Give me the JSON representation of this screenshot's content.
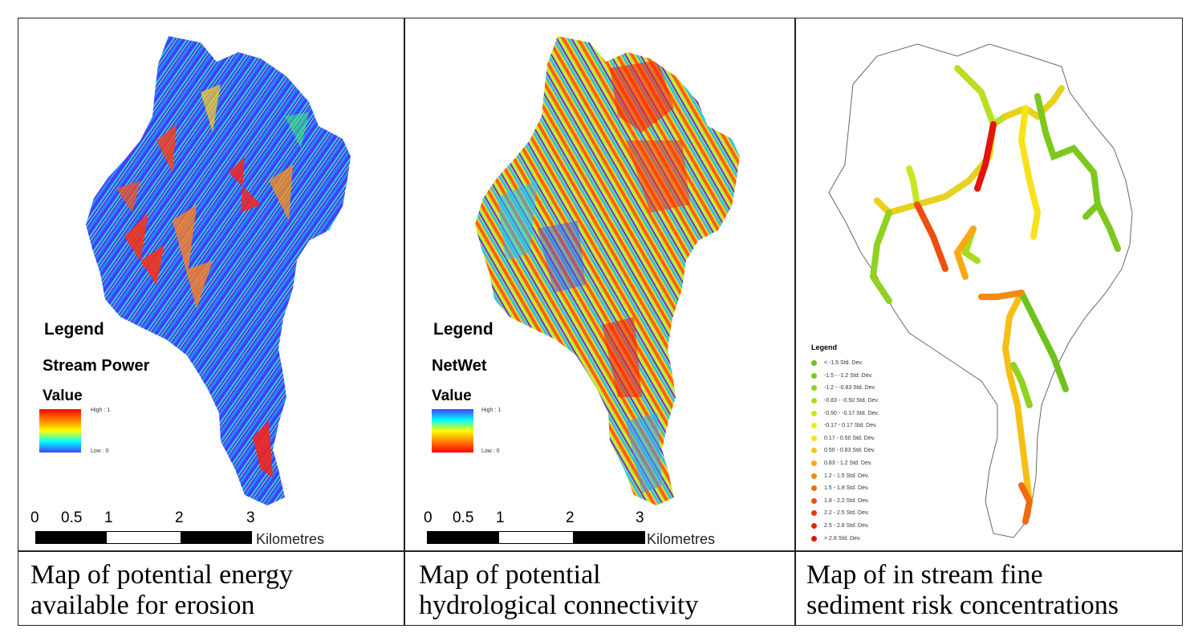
{
  "panels": [
    {
      "caption_line1": "Map of potential energy",
      "caption_line2": "available for erosion",
      "legend_title": "Legend",
      "layer_name": "Stream Power",
      "value_label": "Value",
      "high_label": "High : 1",
      "low_label": "Low : 0",
      "ramp": [
        "#ff0000",
        "#ff7f00",
        "#ffff00",
        "#00ffff",
        "#4040ff"
      ]
    },
    {
      "caption_line1": "Map of potential",
      "caption_line2": "hydrological connectivity",
      "legend_title": "Legend",
      "layer_name": "NetWet",
      "value_label": "Value",
      "high_label": "High : 1",
      "low_label": "Low : 0",
      "ramp": [
        "#4040ff",
        "#00ffff",
        "#ffff00",
        "#ff7f00",
        "#ff0000"
      ]
    },
    {
      "caption_line1": "Map of in stream fine",
      "caption_line2": "sediment risk concentrations",
      "legend_title": "Legend",
      "classes": [
        {
          "label": "< -1.5 Std. Dev.",
          "color": "#6fc21c"
        },
        {
          "label": "-1.5 - -1.2 Std. Dev.",
          "color": "#7cc81f"
        },
        {
          "label": "-1.2 - -0.83 Std. Dev.",
          "color": "#8fd21f"
        },
        {
          "label": "-0.83 - -0.50 Std. Dev.",
          "color": "#a7dc20"
        },
        {
          "label": "-0.50 - -0.17 Std. Dev.",
          "color": "#c8e620"
        },
        {
          "label": "-0.17 - 0.17 Std. Dev.",
          "color": "#e8ef1c"
        },
        {
          "label": "0.17 - 0.50 Std. Dev.",
          "color": "#f8e21a"
        },
        {
          "label": "0.50 - 0.83 Std. Dev.",
          "color": "#fcc416"
        },
        {
          "label": "0.83 - 1.2 Std. Dev.",
          "color": "#f9a814"
        },
        {
          "label": "1.2 - 1.5 Std. Dev.",
          "color": "#f58a12"
        },
        {
          "label": "1.5 - 1.8 Std. Dev.",
          "color": "#f06a10"
        },
        {
          "label": "1.8 - 2.2 Std. Dev.",
          "color": "#ec4f10"
        },
        {
          "label": "2.2 - 2.5 Std. Dev.",
          "color": "#e8380f"
        },
        {
          "label": "2.5 - 2.8 Std. Dev.",
          "color": "#e5240e"
        },
        {
          "label": "> 2.8 Std. Dev.",
          "color": "#e3130d"
        }
      ]
    }
  ],
  "scale_bar": {
    "ticks": [
      "0",
      "0.5",
      "1",
      "2",
      "3"
    ],
    "unit": "Kilometres"
  }
}
